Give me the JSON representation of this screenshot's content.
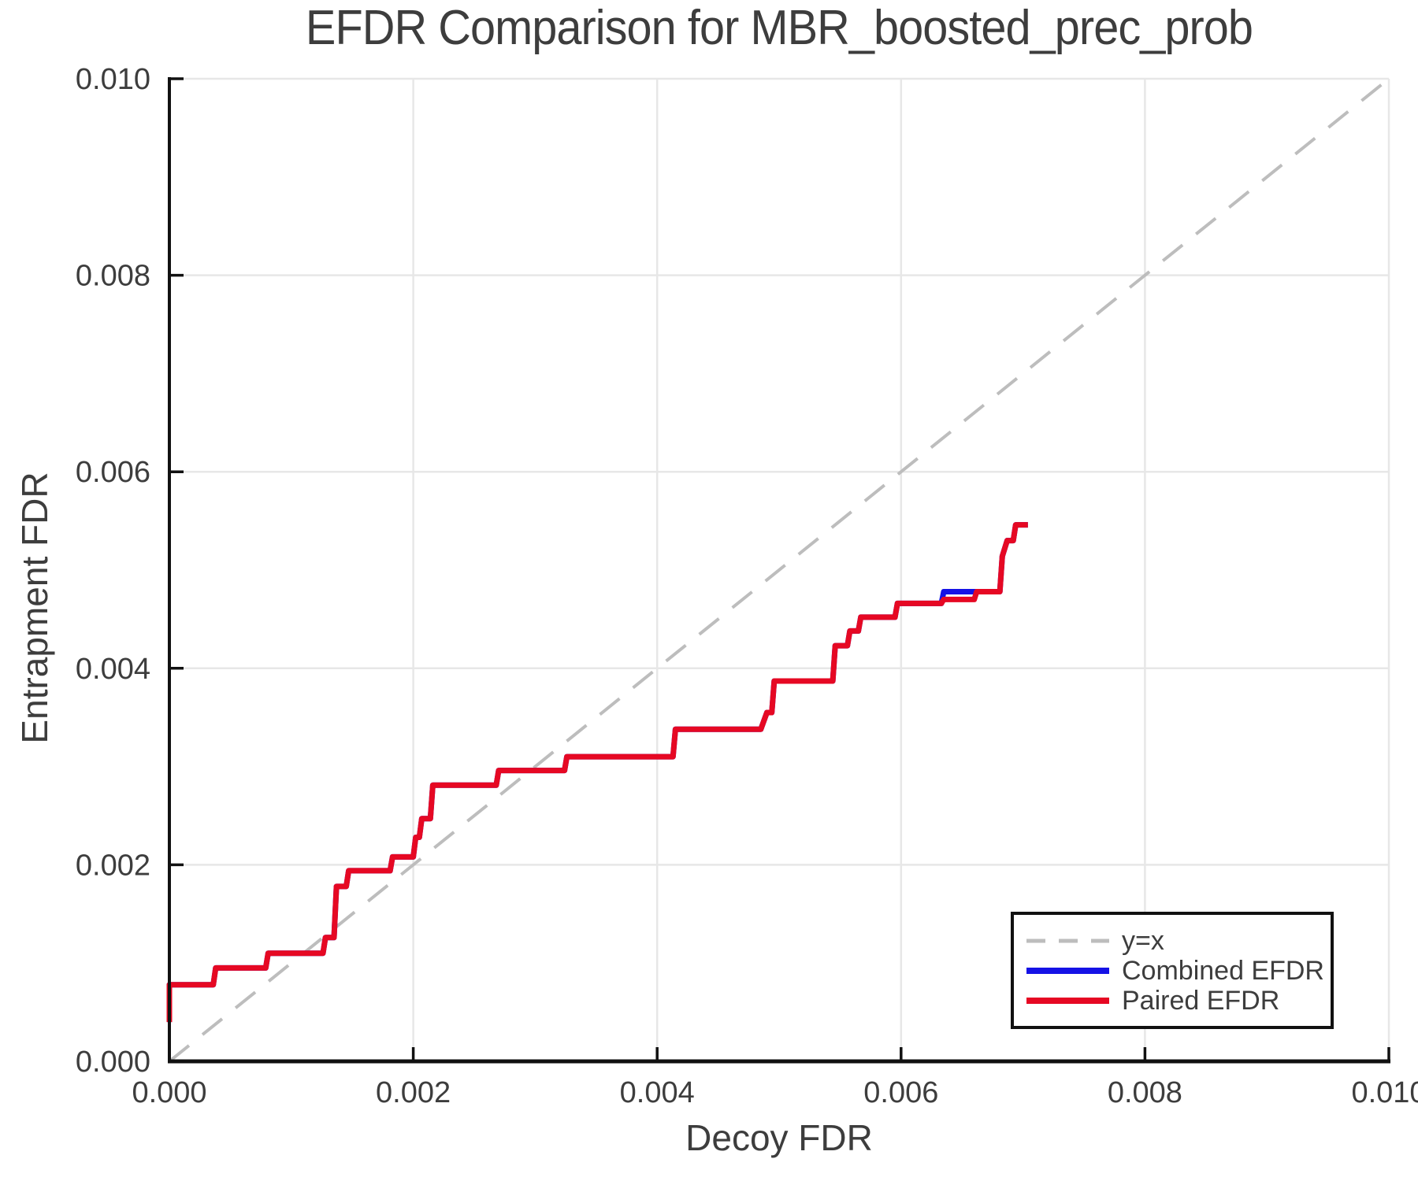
{
  "chart_data": {
    "type": "line",
    "title": "EFDR Comparison for MBR_boosted_prec_prob",
    "xlabel": "Decoy FDR",
    "ylabel": "Entrapment FDR",
    "xlim": [
      0.0,
      0.01
    ],
    "ylim": [
      0.0,
      0.01
    ],
    "grid": true,
    "xticks": {
      "values": [
        0.0,
        0.002,
        0.004,
        0.006,
        0.008,
        0.01
      ],
      "labels": [
        "0.000",
        "0.002",
        "0.004",
        "0.006",
        "0.008",
        "0.010"
      ]
    },
    "yticks": {
      "values": [
        0.0,
        0.002,
        0.004,
        0.006,
        0.008,
        0.01
      ],
      "labels": [
        "0.000",
        "0.002",
        "0.004",
        "0.006",
        "0.008",
        "0.010"
      ]
    },
    "style": {
      "background": "#ffffff",
      "grid_color": "#e7e7e7",
      "axis_color": "#111111",
      "text_color": "#3d3d3d",
      "identity_color": "#bdbdbd",
      "combined_color": "#1512e6",
      "paired_color": "#e60823"
    },
    "legend": {
      "position": "lower right",
      "entries": [
        {
          "id": "identity",
          "label": "y=x",
          "color": "#bdbdbd",
          "dash": "24 17",
          "width": 5
        },
        {
          "id": "combined-efdr",
          "label": "Combined EFDR",
          "color": "#1512e6",
          "dash": "",
          "width": 8
        },
        {
          "id": "paired-efdr",
          "label": "Paired EFDR",
          "color": "#e60823",
          "dash": "",
          "width": 8
        }
      ]
    },
    "series": [
      {
        "id": "identity",
        "name": "y=x",
        "color": "#bdbdbd",
        "width": 4,
        "dash": "32 22",
        "points": [
          [
            0.0,
            0.0
          ],
          [
            0.01,
            0.01
          ]
        ]
      },
      {
        "id": "combined-efdr",
        "name": "Combined EFDR",
        "color": "#1512e6",
        "width": 7,
        "dash": "",
        "points": [
          [
            0.0,
            0.0004
          ],
          [
            0.0,
            0.00078
          ],
          [
            0.00036,
            0.00078
          ],
          [
            0.00038,
            0.00095
          ],
          [
            0.00079,
            0.00095
          ],
          [
            0.00081,
            0.0011
          ],
          [
            0.00126,
            0.0011
          ],
          [
            0.00128,
            0.00126
          ],
          [
            0.00135,
            0.00126
          ],
          [
            0.00137,
            0.00178
          ],
          [
            0.00145,
            0.00178
          ],
          [
            0.00147,
            0.00194
          ],
          [
            0.00181,
            0.00194
          ],
          [
            0.00183,
            0.00208
          ],
          [
            0.002,
            0.00208
          ],
          [
            0.00202,
            0.00228
          ],
          [
            0.00205,
            0.00228
          ],
          [
            0.00207,
            0.00247
          ],
          [
            0.00214,
            0.00247
          ],
          [
            0.00216,
            0.00281
          ],
          [
            0.00268,
            0.00281
          ],
          [
            0.0027,
            0.00296
          ],
          [
            0.00324,
            0.00296
          ],
          [
            0.00326,
            0.0031
          ],
          [
            0.00413,
            0.0031
          ],
          [
            0.00415,
            0.00338
          ],
          [
            0.00485,
            0.00338
          ],
          [
            0.0049,
            0.00355
          ],
          [
            0.00494,
            0.00355
          ],
          [
            0.00496,
            0.00387
          ],
          [
            0.00544,
            0.00387
          ],
          [
            0.00546,
            0.00423
          ],
          [
            0.00556,
            0.00423
          ],
          [
            0.00558,
            0.00438
          ],
          [
            0.00565,
            0.00438
          ],
          [
            0.00567,
            0.00452
          ],
          [
            0.00595,
            0.00452
          ],
          [
            0.00597,
            0.00466
          ],
          [
            0.00633,
            0.00466
          ],
          [
            0.00635,
            0.00478
          ],
          [
            0.00681,
            0.00478
          ],
          [
            0.00683,
            0.00514
          ],
          [
            0.00687,
            0.0053
          ],
          [
            0.00692,
            0.0053
          ],
          [
            0.00694,
            0.00546
          ],
          [
            0.00704,
            0.00546
          ]
        ]
      },
      {
        "id": "paired-efdr",
        "name": "Paired EFDR",
        "color": "#e60823",
        "width": 7,
        "dash": "",
        "points": [
          [
            0.0,
            0.0004
          ],
          [
            0.0,
            0.00078
          ],
          [
            0.00036,
            0.00078
          ],
          [
            0.00038,
            0.00095
          ],
          [
            0.00079,
            0.00095
          ],
          [
            0.00081,
            0.0011
          ],
          [
            0.00126,
            0.0011
          ],
          [
            0.00128,
            0.00126
          ],
          [
            0.00135,
            0.00126
          ],
          [
            0.00137,
            0.00178
          ],
          [
            0.00145,
            0.00178
          ],
          [
            0.00147,
            0.00194
          ],
          [
            0.00181,
            0.00194
          ],
          [
            0.00183,
            0.00208
          ],
          [
            0.002,
            0.00208
          ],
          [
            0.00202,
            0.00228
          ],
          [
            0.00205,
            0.00228
          ],
          [
            0.00207,
            0.00247
          ],
          [
            0.00214,
            0.00247
          ],
          [
            0.00216,
            0.00281
          ],
          [
            0.00268,
            0.00281
          ],
          [
            0.0027,
            0.00296
          ],
          [
            0.00324,
            0.00296
          ],
          [
            0.00326,
            0.0031
          ],
          [
            0.00413,
            0.0031
          ],
          [
            0.00415,
            0.00338
          ],
          [
            0.00485,
            0.00338
          ],
          [
            0.0049,
            0.00355
          ],
          [
            0.00494,
            0.00355
          ],
          [
            0.00496,
            0.00387
          ],
          [
            0.00544,
            0.00387
          ],
          [
            0.00546,
            0.00423
          ],
          [
            0.00556,
            0.00423
          ],
          [
            0.00558,
            0.00438
          ],
          [
            0.00565,
            0.00438
          ],
          [
            0.00567,
            0.00452
          ],
          [
            0.00595,
            0.00452
          ],
          [
            0.00597,
            0.00466
          ],
          [
            0.00633,
            0.00466
          ],
          [
            0.00635,
            0.0047
          ],
          [
            0.0066,
            0.0047
          ],
          [
            0.00662,
            0.00478
          ],
          [
            0.00681,
            0.00478
          ],
          [
            0.00683,
            0.00514
          ],
          [
            0.00687,
            0.0053
          ],
          [
            0.00692,
            0.0053
          ],
          [
            0.00694,
            0.00546
          ],
          [
            0.00704,
            0.00546
          ]
        ]
      }
    ]
  }
}
